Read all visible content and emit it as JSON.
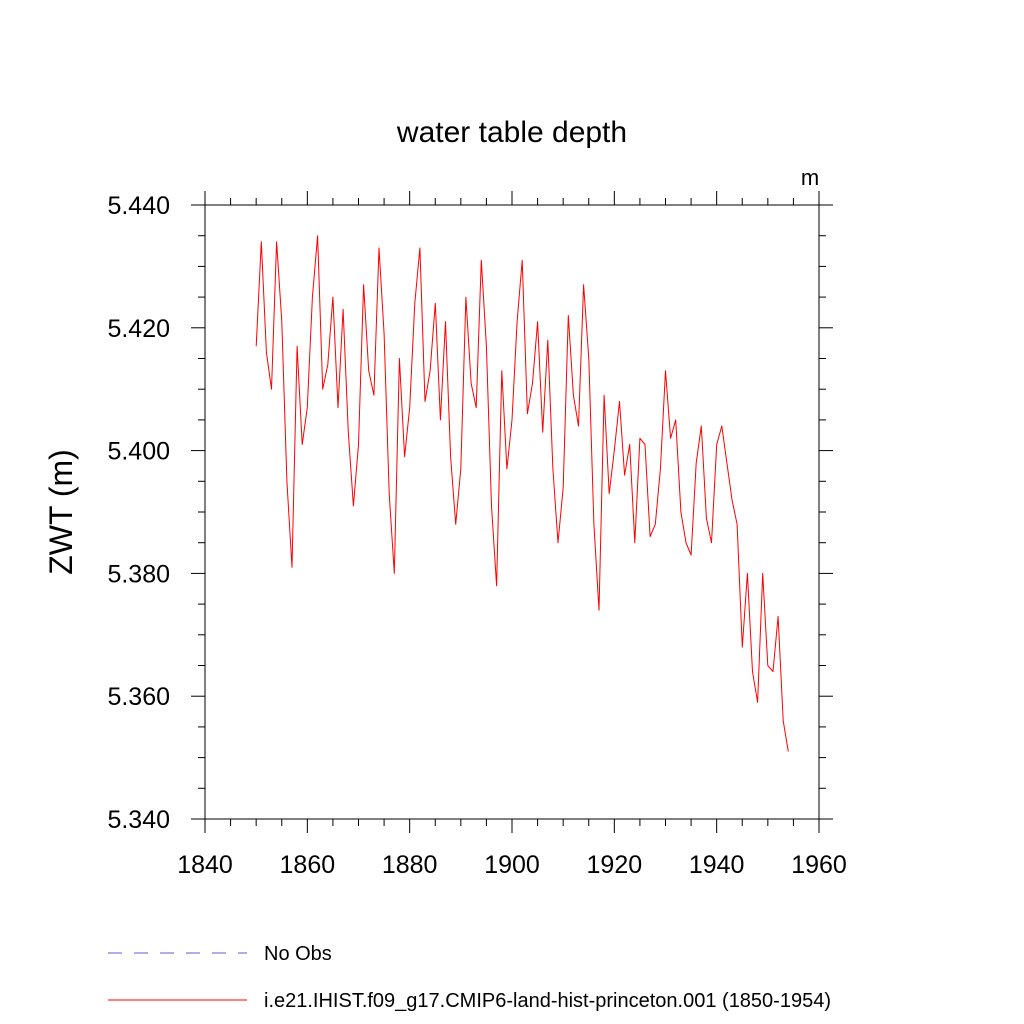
{
  "chart_data": {
    "type": "line",
    "title": "water table depth",
    "units": "m",
    "ylabel": "ZWT  (m)",
    "xlabel": "",
    "xlim": [
      1840,
      1960
    ],
    "ylim": [
      5.34,
      5.44
    ],
    "xticks": [
      1840,
      1860,
      1880,
      1900,
      1920,
      1940,
      1960
    ],
    "xtick_labels": [
      "1840",
      "1860",
      "1880",
      "1900",
      "1920",
      "1940",
      "1960"
    ],
    "yticks": [
      5.34,
      5.36,
      5.38,
      5.4,
      5.42,
      5.44
    ],
    "ytick_labels": [
      "5.340",
      "5.360",
      "5.380",
      "5.400",
      "5.420",
      "5.440"
    ],
    "grid": false,
    "legend_position": "bottom",
    "series": [
      {
        "name": "No Obs",
        "color": "#6a5acd",
        "style": "dashed",
        "x": [],
        "y": []
      },
      {
        "name": "i.e21.IHIST.f09_g17.CMIP6-land-hist-princeton.001 (1850-1954)",
        "color": "#ff0000",
        "style": "solid",
        "x": [
          1850,
          1851,
          1852,
          1853,
          1854,
          1855,
          1856,
          1857,
          1858,
          1859,
          1860,
          1861,
          1862,
          1863,
          1864,
          1865,
          1866,
          1867,
          1868,
          1869,
          1870,
          1871,
          1872,
          1873,
          1874,
          1875,
          1876,
          1877,
          1878,
          1879,
          1880,
          1881,
          1882,
          1883,
          1884,
          1885,
          1886,
          1887,
          1888,
          1889,
          1890,
          1891,
          1892,
          1893,
          1894,
          1895,
          1896,
          1897,
          1898,
          1899,
          1900,
          1901,
          1902,
          1903,
          1904,
          1905,
          1906,
          1907,
          1908,
          1909,
          1910,
          1911,
          1912,
          1913,
          1914,
          1915,
          1916,
          1917,
          1918,
          1919,
          1920,
          1921,
          1922,
          1923,
          1924,
          1925,
          1926,
          1927,
          1928,
          1929,
          1930,
          1931,
          1932,
          1933,
          1934,
          1935,
          1936,
          1937,
          1938,
          1939,
          1940,
          1941,
          1942,
          1943,
          1944,
          1945,
          1946,
          1947,
          1948,
          1949,
          1950,
          1951,
          1952,
          1953,
          1954
        ],
        "y": [
          5.417,
          5.434,
          5.416,
          5.41,
          5.434,
          5.421,
          5.395,
          5.381,
          5.417,
          5.401,
          5.407,
          5.425,
          5.435,
          5.41,
          5.414,
          5.425,
          5.407,
          5.423,
          5.403,
          5.391,
          5.401,
          5.427,
          5.413,
          5.409,
          5.433,
          5.419,
          5.393,
          5.38,
          5.415,
          5.399,
          5.407,
          5.424,
          5.433,
          5.408,
          5.413,
          5.424,
          5.405,
          5.421,
          5.399,
          5.388,
          5.397,
          5.425,
          5.411,
          5.407,
          5.431,
          5.417,
          5.391,
          5.378,
          5.413,
          5.397,
          5.405,
          5.421,
          5.431,
          5.406,
          5.411,
          5.421,
          5.403,
          5.418,
          5.397,
          5.385,
          5.394,
          5.422,
          5.409,
          5.404,
          5.427,
          5.415,
          5.388,
          5.374,
          5.409,
          5.393,
          5.4,
          5.408,
          5.396,
          5.401,
          5.385,
          5.402,
          5.401,
          5.386,
          5.388,
          5.397,
          5.413,
          5.402,
          5.405,
          5.39,
          5.385,
          5.383,
          5.398,
          5.404,
          5.389,
          5.385,
          5.401,
          5.404,
          5.398,
          5.392,
          5.388,
          5.368,
          5.38,
          5.364,
          5.359,
          5.38,
          5.365,
          5.364,
          5.373,
          5.356,
          5.351
        ]
      }
    ]
  }
}
